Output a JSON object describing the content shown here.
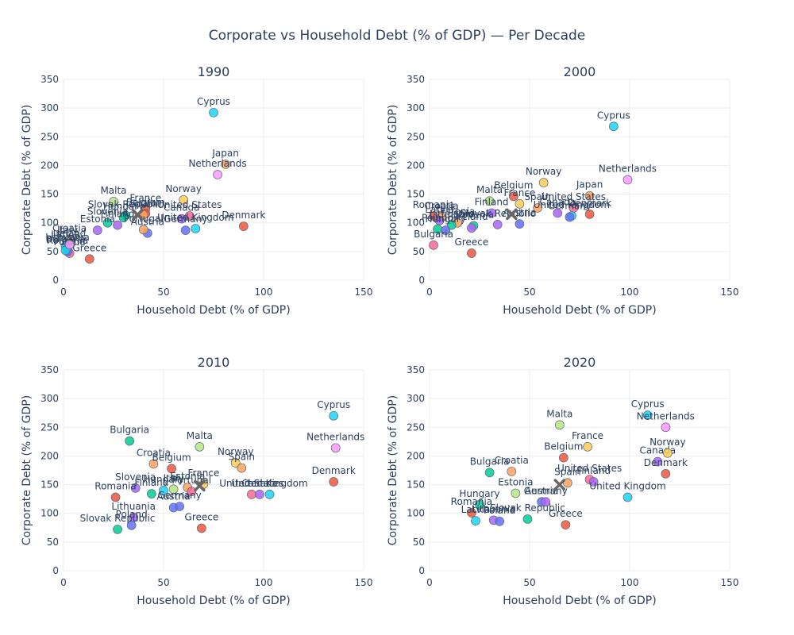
{
  "title": "Corporate vs Household Debt (% of GDP) — Per Decade",
  "chart_data": [
    {
      "type": "scatter",
      "title": "1990",
      "xlabel": "Household Debt (% of GDP)",
      "ylabel": "Corporate Debt (% of GDP)",
      "xlim": [
        0,
        150
      ],
      "ylim": [
        0,
        350
      ],
      "xticks": [
        "0",
        "50",
        "100",
        "150"
      ],
      "yticks": [
        "0",
        "50",
        "100",
        "150",
        "200",
        "250",
        "300",
        "350"
      ],
      "points": [
        {
          "name": "Cyprus",
          "x": 75,
          "y": 292,
          "color": "#19d3f3"
        },
        {
          "name": "Japan",
          "x": 81,
          "y": 202,
          "color": "#ffa15a"
        },
        {
          "name": "Netherlands",
          "x": 77,
          "y": 184,
          "color": "#ff97ff"
        },
        {
          "name": "Malta",
          "x": 25,
          "y": 137,
          "color": "#b6e880"
        },
        {
          "name": "Norway",
          "x": 60,
          "y": 140,
          "color": "#fecb52"
        },
        {
          "name": "France",
          "x": 41,
          "y": 124,
          "color": "#ef553b"
        },
        {
          "name": "United States",
          "x": 63,
          "y": 112,
          "color": "#ff6692"
        },
        {
          "name": "Canada",
          "x": 59,
          "y": 107,
          "color": "#ab63fa"
        },
        {
          "name": "Belgium",
          "x": 41,
          "y": 116,
          "color": "#ef553b"
        },
        {
          "name": "Spain",
          "x": 40,
          "y": 114,
          "color": "#ffa15a"
        },
        {
          "name": "Slovak Republic",
          "x": 31,
          "y": 113,
          "color": "#00cc96"
        },
        {
          "name": "Hungary",
          "x": 30,
          "y": 109,
          "color": "#00cc96"
        },
        {
          "name": "United Kingdom",
          "x": 66,
          "y": 90,
          "color": "#19d3f3"
        },
        {
          "name": "Germany",
          "x": 61,
          "y": 87,
          "color": "#636efa"
        },
        {
          "name": "Austria",
          "x": 42,
          "y": 82,
          "color": "#636efa"
        },
        {
          "name": "Portugal",
          "x": 40,
          "y": 88,
          "color": "#ffa15a"
        },
        {
          "name": "Slovenia",
          "x": 22,
          "y": 100,
          "color": "#00cc96"
        },
        {
          "name": "Finland",
          "x": 27,
          "y": 96,
          "color": "#ab63fa"
        },
        {
          "name": "Estonia",
          "x": 17,
          "y": 87,
          "color": "#ab63fa"
        },
        {
          "name": "Denmark",
          "x": 90,
          "y": 94,
          "color": "#ef553b"
        },
        {
          "name": "Greece",
          "x": 13,
          "y": 37,
          "color": "#ef553b"
        },
        {
          "name": "Croatia",
          "x": 3,
          "y": 71,
          "color": "#ffa15a"
        },
        {
          "name": "Italy",
          "x": 2,
          "y": 68,
          "color": "#b6e880"
        },
        {
          "name": "Latvia",
          "x": 1,
          "y": 60,
          "color": "#19d3f3"
        },
        {
          "name": "Lithuania",
          "x": 2,
          "y": 55,
          "color": "#00cc96"
        },
        {
          "name": "Poland",
          "x": 3,
          "y": 47,
          "color": "#ff6692"
        },
        {
          "name": "Romania",
          "x": 2,
          "y": 50,
          "color": "#636efa"
        },
        {
          "name": "Bulgaria",
          "x": 1,
          "y": 52,
          "color": "#19d3f3"
        },
        {
          "name": "Ireland",
          "x": 3,
          "y": 62,
          "color": "#ff97ff"
        }
      ],
      "mean_marker": {
        "x": 37,
        "y": 114
      }
    },
    {
      "type": "scatter",
      "title": "2000",
      "xlabel": "Household Debt (% of GDP)",
      "ylabel": "Corporate Debt (% of GDP)",
      "xlim": [
        0,
        150
      ],
      "ylim": [
        0,
        350
      ],
      "xticks": [
        "0",
        "50",
        "100",
        "150"
      ],
      "yticks": [
        "0",
        "50",
        "100",
        "150",
        "200",
        "250",
        "300",
        "350"
      ],
      "points": [
        {
          "name": "Cyprus",
          "x": 92,
          "y": 268,
          "color": "#19d3f3"
        },
        {
          "name": "Netherlands",
          "x": 99,
          "y": 175,
          "color": "#ff97ff"
        },
        {
          "name": "Norway",
          "x": 57,
          "y": 170,
          "color": "#fecb52"
        },
        {
          "name": "Japan",
          "x": 80,
          "y": 147,
          "color": "#ffa15a"
        },
        {
          "name": "Malta",
          "x": 30,
          "y": 138,
          "color": "#b6e880"
        },
        {
          "name": "Belgium",
          "x": 42,
          "y": 146,
          "color": "#ef553b"
        },
        {
          "name": "France",
          "x": 45,
          "y": 133,
          "color": "#fecb52"
        },
        {
          "name": "United States",
          "x": 72,
          "y": 126,
          "color": "#ff6692"
        },
        {
          "name": "Spain",
          "x": 54,
          "y": 126,
          "color": "#ffa15a"
        },
        {
          "name": "Denmark",
          "x": 80,
          "y": 115,
          "color": "#ef553b"
        },
        {
          "name": "United Kingdom",
          "x": 71,
          "y": 112,
          "color": "#19d3f3"
        },
        {
          "name": "Germany",
          "x": 70,
          "y": 110,
          "color": "#636efa"
        },
        {
          "name": "Canada",
          "x": 64,
          "y": 117,
          "color": "#ab63fa"
        },
        {
          "name": "Austria",
          "x": 45,
          "y": 98,
          "color": "#636efa"
        },
        {
          "name": "Finland",
          "x": 31,
          "y": 117,
          "color": "#ab63fa"
        },
        {
          "name": "Slovak Republic",
          "x": 34,
          "y": 97,
          "color": "#ab63fa"
        },
        {
          "name": "Slovenia",
          "x": 22,
          "y": 95,
          "color": "#00cc96"
        },
        {
          "name": "Estonia",
          "x": 14,
          "y": 100,
          "color": "#ffa15a"
        },
        {
          "name": "Romania",
          "x": 2,
          "y": 112,
          "color": "#ef553b"
        },
        {
          "name": "Croatia",
          "x": 6,
          "y": 110,
          "color": "#ffa15a"
        },
        {
          "name": "Latvia",
          "x": 5,
          "y": 104,
          "color": "#ab63fa"
        },
        {
          "name": "Lithuania",
          "x": 11,
          "y": 96,
          "color": "#00cc96"
        },
        {
          "name": "Hungary",
          "x": 8,
          "y": 87,
          "color": "#636efa"
        },
        {
          "name": "Poland",
          "x": 4,
          "y": 89,
          "color": "#00cc96"
        },
        {
          "name": "Ireland",
          "x": 21,
          "y": 91,
          "color": "#ab63fa"
        },
        {
          "name": "Bulgaria",
          "x": 2,
          "y": 61,
          "color": "#ff6692"
        },
        {
          "name": "Greece",
          "x": 21,
          "y": 47,
          "color": "#ef553b"
        }
      ],
      "mean_marker": {
        "x": 41,
        "y": 115
      }
    },
    {
      "type": "scatter",
      "title": "2010",
      "xlabel": "Household Debt (% of GDP)",
      "ylabel": "Corporate Debt (% of GDP)",
      "xlim": [
        0,
        150
      ],
      "ylim": [
        0,
        350
      ],
      "xticks": [
        "0",
        "50",
        "100",
        "150"
      ],
      "yticks": [
        "0",
        "50",
        "100",
        "150",
        "200",
        "250",
        "300",
        "350"
      ],
      "points": [
        {
          "name": "Cyprus",
          "x": 135,
          "y": 270,
          "color": "#19d3f3"
        },
        {
          "name": "Netherlands",
          "x": 136,
          "y": 214,
          "color": "#ff97ff"
        },
        {
          "name": "Bulgaria",
          "x": 33,
          "y": 226,
          "color": "#00cc96"
        },
        {
          "name": "Malta",
          "x": 68,
          "y": 216,
          "color": "#b6e880"
        },
        {
          "name": "Norway",
          "x": 86,
          "y": 188,
          "color": "#fecb52"
        },
        {
          "name": "Spain",
          "x": 89,
          "y": 179,
          "color": "#ffa15a"
        },
        {
          "name": "Croatia",
          "x": 45,
          "y": 186,
          "color": "#ffa15a"
        },
        {
          "name": "Belgium",
          "x": 54,
          "y": 178,
          "color": "#ef553b"
        },
        {
          "name": "Denmark",
          "x": 135,
          "y": 155,
          "color": "#ef553b"
        },
        {
          "name": "France",
          "x": 70,
          "y": 151,
          "color": "#fecb52"
        },
        {
          "name": "Estonia",
          "x": 62,
          "y": 145,
          "color": "#ffa15a"
        },
        {
          "name": "Slovenia",
          "x": 36,
          "y": 144,
          "color": "#ab63fa"
        },
        {
          "name": "Hungary",
          "x": 50,
          "y": 140,
          "color": "#19d3f3"
        },
        {
          "name": "Italy",
          "x": 55,
          "y": 142,
          "color": "#b6e880"
        },
        {
          "name": "Portugal",
          "x": 64,
          "y": 138,
          "color": "#ff6692"
        },
        {
          "name": "United States",
          "x": 94,
          "y": 133,
          "color": "#ff6692"
        },
        {
          "name": "Canada",
          "x": 98,
          "y": 133,
          "color": "#ab63fa"
        },
        {
          "name": "United Kingdom",
          "x": 103,
          "y": 133,
          "color": "#19d3f3"
        },
        {
          "name": "Romania",
          "x": 26,
          "y": 128,
          "color": "#ef553b"
        },
        {
          "name": "Finland",
          "x": 44,
          "y": 134,
          "color": "#00cc96"
        },
        {
          "name": "Austria",
          "x": 55,
          "y": 110,
          "color": "#636efa"
        },
        {
          "name": "Germany",
          "x": 58,
          "y": 112,
          "color": "#636efa"
        },
        {
          "name": "Lithuania",
          "x": 35,
          "y": 93,
          "color": "#ab63fa"
        },
        {
          "name": "Poland",
          "x": 34,
          "y": 79,
          "color": "#636efa"
        },
        {
          "name": "Slovak Republic",
          "x": 27,
          "y": 72,
          "color": "#00cc96"
        },
        {
          "name": "Greece",
          "x": 69,
          "y": 74,
          "color": "#ef553b"
        }
      ],
      "mean_marker": {
        "x": 68,
        "y": 148
      }
    },
    {
      "type": "scatter",
      "title": "2020",
      "xlabel": "Household Debt (% of GDP)",
      "ylabel": "Corporate Debt (% of GDP)",
      "xlim": [
        0,
        150
      ],
      "ylim": [
        0,
        350
      ],
      "xticks": [
        "0",
        "50",
        "100",
        "150"
      ],
      "yticks": [
        "0",
        "50",
        "100",
        "150",
        "200",
        "250",
        "300",
        "350"
      ],
      "points": [
        {
          "name": "Cyprus",
          "x": 109,
          "y": 271,
          "color": "#19d3f3"
        },
        {
          "name": "Netherlands",
          "x": 118,
          "y": 250,
          "color": "#ff97ff"
        },
        {
          "name": "Malta",
          "x": 65,
          "y": 254,
          "color": "#b6e880"
        },
        {
          "name": "France",
          "x": 79,
          "y": 216,
          "color": "#fecb52"
        },
        {
          "name": "Canada",
          "x": 114,
          "y": 190,
          "color": "#ab63fa"
        },
        {
          "name": "Norway",
          "x": 119,
          "y": 205,
          "color": "#fecb52"
        },
        {
          "name": "Belgium",
          "x": 67,
          "y": 197,
          "color": "#ef553b"
        },
        {
          "name": "Denmark",
          "x": 118,
          "y": 169,
          "color": "#ef553b"
        },
        {
          "name": "Bulgaria",
          "x": 30,
          "y": 171,
          "color": "#00cc96"
        },
        {
          "name": "Croatia",
          "x": 41,
          "y": 173,
          "color": "#ffa15a"
        },
        {
          "name": "United States",
          "x": 80,
          "y": 159,
          "color": "#ff6692"
        },
        {
          "name": "Finland",
          "x": 82,
          "y": 155,
          "color": "#ab63fa"
        },
        {
          "name": "Spain",
          "x": 69,
          "y": 153,
          "color": "#ffa15a"
        },
        {
          "name": "Estonia",
          "x": 43,
          "y": 135,
          "color": "#b6e880"
        },
        {
          "name": "United Kingdom",
          "x": 99,
          "y": 128,
          "color": "#19d3f3"
        },
        {
          "name": "Austria",
          "x": 56,
          "y": 120,
          "color": "#636efa"
        },
        {
          "name": "Germany",
          "x": 58,
          "y": 120,
          "color": "#ab63fa"
        },
        {
          "name": "Hungary",
          "x": 25,
          "y": 115,
          "color": "#00cc96"
        },
        {
          "name": "Romania",
          "x": 21,
          "y": 101,
          "color": "#ef553b"
        },
        {
          "name": "Latvia",
          "x": 23,
          "y": 87,
          "color": "#19d3f3"
        },
        {
          "name": "Lithuania",
          "x": 32,
          "y": 88,
          "color": "#ab63fa"
        },
        {
          "name": "Poland",
          "x": 35,
          "y": 86,
          "color": "#636efa"
        },
        {
          "name": "Slovak Republic",
          "x": 49,
          "y": 90,
          "color": "#00cc96"
        },
        {
          "name": "Greece",
          "x": 68,
          "y": 80,
          "color": "#ef553b"
        }
      ],
      "mean_marker": {
        "x": 65,
        "y": 150
      }
    }
  ]
}
